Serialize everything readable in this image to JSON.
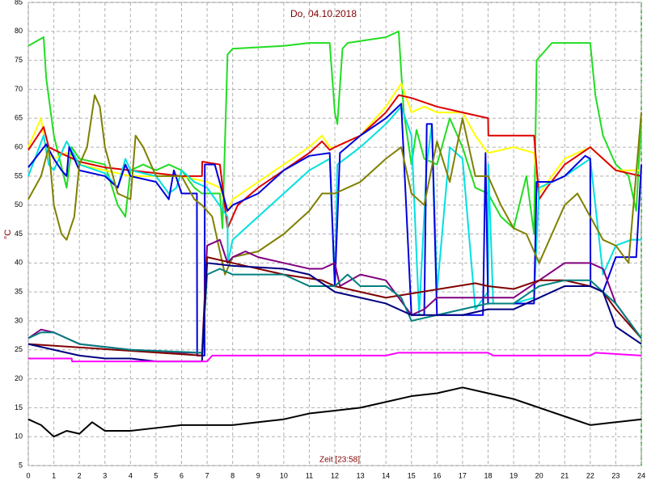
{
  "chart_data": {
    "type": "line",
    "title": "Do, 04.10.2018",
    "x_label": "Zeit [23:58]",
    "y_label": "°C",
    "xlim": [
      0,
      24
    ],
    "xticks": [
      0,
      1,
      2,
      3,
      4,
      5,
      6,
      7,
      8,
      9,
      10,
      11,
      12,
      13,
      14,
      15,
      16,
      17,
      18,
      19,
      20,
      21,
      22,
      23,
      24
    ],
    "ylim": [
      5,
      85
    ],
    "yticks": [
      5,
      10,
      15,
      20,
      25,
      30,
      35,
      40,
      45,
      50,
      55,
      60,
      65,
      70,
      75,
      80,
      85
    ],
    "grid": true,
    "series": [
      {
        "color": "#22dd22",
        "x": [
          0,
          0.2,
          0.6,
          0.7,
          1,
          1.5,
          1.7,
          2,
          3,
          3.5,
          3.8,
          4,
          4.5,
          5,
          5.5,
          6,
          6.5,
          6.8,
          7.5,
          7.6,
          7.8,
          8,
          10,
          11,
          11.8,
          12,
          12.1,
          12.3,
          12.5,
          14,
          14.5,
          14.7,
          15,
          15.2,
          15.5,
          16,
          16.5,
          17,
          17.5,
          18,
          18.5,
          19,
          19.5,
          19.8,
          19.9,
          20.5,
          22,
          22.2,
          22.5,
          23,
          23.5,
          23.8,
          24
        ],
        "values": [
          77.5,
          78,
          79,
          72,
          62,
          53,
          60,
          58,
          57,
          50,
          48,
          56,
          57,
          56,
          57,
          56,
          53,
          52,
          52,
          46,
          76,
          77,
          77.5,
          78,
          78,
          66,
          64,
          77,
          78,
          79,
          80,
          66,
          57,
          63,
          58,
          57,
          65,
          60,
          53,
          52,
          48,
          46,
          55,
          45,
          75,
          78,
          78,
          69,
          62,
          57,
          55,
          49,
          65
        ]
      },
      {
        "color": "#ffff00",
        "x": [
          0,
          0.5,
          0.7,
          1,
          1.5,
          2,
          3,
          4,
          5,
          6,
          7,
          7.5,
          7.8,
          8,
          9,
          10,
          11,
          11.5,
          11.8,
          12,
          13,
          14,
          14.6,
          15,
          15.5,
          16,
          17,
          17.5,
          18,
          19,
          19.8,
          20,
          21,
          22,
          22.5,
          23,
          24
        ],
        "values": [
          60,
          65,
          59,
          58,
          59,
          57,
          56,
          55,
          55,
          55,
          54,
          53,
          49,
          51,
          54,
          57,
          60,
          62,
          60,
          60,
          62,
          67,
          71,
          66,
          67,
          66,
          66,
          62,
          59,
          60,
          59,
          52,
          58,
          60,
          58,
          56,
          56
        ]
      },
      {
        "color": "#dd0000",
        "x": [
          0,
          0.6,
          0.8,
          1.5,
          2,
          3,
          4,
          5,
          6,
          6.8,
          6.81,
          7.5,
          7.8,
          8.2,
          9,
          10,
          11,
          11.5,
          11.8,
          12,
          13,
          14,
          14.5,
          15,
          16,
          17,
          18,
          18.01,
          18.5,
          19,
          19.8,
          20,
          20.3,
          21,
          22,
          22.5,
          23,
          24
        ],
        "values": [
          59.5,
          63.5,
          60,
          58.5,
          57.5,
          56.5,
          56,
          55.5,
          55,
          55,
          57.5,
          57,
          46,
          50,
          53,
          56,
          59,
          61,
          59.5,
          60,
          62,
          66,
          69,
          68.5,
          67,
          66,
          65,
          62,
          62,
          62,
          62,
          51,
          53,
          57,
          60,
          58,
          56,
          55
        ]
      },
      {
        "color": "#00e0e0",
        "x": [
          0,
          0.6,
          0.8,
          1,
          1.5,
          2,
          3,
          3.5,
          3.8,
          4,
          5,
          5.5,
          5.8,
          6,
          6.5,
          7,
          7.8,
          7.81,
          8,
          9,
          10,
          11,
          11.8,
          12,
          12.1,
          13,
          14,
          14.6,
          15,
          15.3,
          15.6,
          15.8,
          16,
          16.5,
          17,
          17.5,
          18,
          18.01,
          18.2,
          19,
          19.8,
          20,
          21,
          22,
          22.5,
          23,
          23.6,
          24
        ],
        "values": [
          55,
          62,
          57,
          56,
          61,
          57,
          55.5,
          53,
          58,
          56,
          55,
          52,
          53,
          56,
          54,
          53,
          48,
          40,
          44,
          48,
          52,
          56,
          58,
          36,
          57,
          60,
          64,
          67,
          62,
          31,
          57,
          64,
          35,
          60,
          58,
          32,
          35,
          57,
          33,
          33,
          34,
          53,
          55,
          58,
          38,
          43,
          44,
          44
        ]
      },
      {
        "color": "#0000dd",
        "x": [
          0,
          0.7,
          1,
          1.3,
          1.5,
          1.6,
          2,
          3,
          3.5,
          3.8,
          4,
          5,
          5.5,
          5.7,
          6,
          6.6,
          6.61,
          6.9,
          6.91,
          7.3,
          7.8,
          8,
          9,
          10,
          11,
          11.8,
          12,
          12.2,
          13,
          14,
          14.6,
          15,
          15.5,
          15.6,
          15.8,
          16,
          17,
          17.8,
          17.9,
          18,
          19.8,
          19.9,
          20.5,
          21,
          21.8,
          22,
          22.01,
          22.5,
          23,
          23.8,
          24
        ],
        "values": [
          56.5,
          60.5,
          58,
          56,
          55,
          60,
          56,
          55,
          53,
          57,
          55,
          54,
          51,
          56,
          52,
          52,
          24,
          24,
          57,
          57,
          49,
          50,
          52,
          56,
          58.5,
          59,
          36,
          59,
          62,
          65,
          67.5,
          31,
          31,
          64,
          64,
          31,
          31,
          31,
          59,
          33,
          33,
          54,
          54,
          55,
          58.5,
          58,
          36,
          35,
          41,
          41,
          57
        ]
      },
      {
        "color": "#808000",
        "x": [
          0,
          0.5,
          0.8,
          1,
          1.3,
          1.5,
          1.8,
          2,
          2.3,
          2.6,
          2.8,
          3,
          3.5,
          4,
          4.2,
          4.5,
          5,
          5.5,
          6,
          6.5,
          6.8,
          7.2,
          7.7,
          8,
          9,
          10,
          11,
          11.5,
          12,
          13,
          14,
          14.6,
          15,
          15.5,
          16,
          16.5,
          17,
          17.5,
          18,
          18.5,
          19,
          19.5,
          20,
          20.5,
          21,
          21.5,
          22,
          22.5,
          23,
          23.5,
          24
        ],
        "values": [
          51,
          55,
          60,
          50,
          45,
          44,
          48,
          57,
          60,
          69,
          67,
          60,
          52,
          51,
          62,
          60,
          55,
          55,
          55,
          51,
          50,
          48,
          38,
          41,
          42,
          45,
          49,
          52,
          52,
          54,
          58,
          60,
          52,
          50,
          61,
          54,
          65,
          55,
          55,
          50,
          46,
          45,
          40,
          45,
          50,
          52,
          48,
          44,
          43,
          40,
          66
        ]
      },
      {
        "color": "#800080",
        "x": [
          0,
          0.5,
          1,
          2,
          3,
          4,
          5,
          6,
          6.8,
          7,
          7.5,
          7.8,
          8,
          8.5,
          9,
          10,
          11,
          11.5,
          12,
          12.2,
          13,
          14,
          15,
          15.5,
          16,
          17,
          17.5,
          18,
          19,
          20,
          21,
          22,
          22.5,
          23,
          24
        ],
        "values": [
          27,
          28.5,
          28,
          26,
          25.5,
          25,
          24.8,
          24.5,
          24.5,
          43,
          44,
          40,
          41,
          42,
          41,
          40,
          39,
          39,
          40,
          36,
          38,
          37,
          31,
          32,
          34,
          34,
          34,
          34,
          34,
          37,
          40,
          40,
          39,
          33,
          27
        ]
      },
      {
        "color": "#800000",
        "x": [
          0,
          6.8,
          7,
          8,
          10,
          11.5,
          12,
          13,
          14,
          17.5,
          18,
          19,
          20,
          21,
          22,
          22.5,
          23,
          24
        ],
        "values": [
          26,
          24,
          41,
          40,
          38,
          37,
          36,
          35,
          34,
          36.5,
          36,
          35.5,
          37,
          37,
          36,
          35,
          32,
          27
        ]
      },
      {
        "color": "#008080",
        "x": [
          0,
          0.5,
          1,
          2,
          4,
          6.8,
          7,
          7.5,
          8,
          9,
          10,
          11,
          12,
          12.5,
          13,
          14,
          14.6,
          15,
          16,
          17,
          18,
          19,
          20,
          21,
          22,
          23,
          24
        ],
        "values": [
          27,
          28,
          28,
          26,
          25,
          24.5,
          38,
          39,
          38,
          38,
          38,
          36,
          36,
          38,
          36,
          36,
          34,
          30,
          31,
          32,
          33,
          33,
          36,
          37,
          37,
          33,
          27
        ]
      },
      {
        "color": "#000080",
        "x": [
          0,
          1,
          2,
          3,
          4,
          5,
          6,
          6.8,
          7,
          8,
          10,
          11,
          12,
          13,
          14,
          15,
          16,
          17,
          18,
          19,
          20,
          21,
          22,
          22.5,
          23,
          24
        ],
        "values": [
          26,
          25,
          24,
          23.5,
          23.5,
          23,
          23,
          23,
          40,
          39.5,
          39,
          38,
          35,
          34,
          33,
          31,
          31,
          31,
          32,
          32,
          34,
          36,
          36,
          35,
          29,
          26
        ]
      },
      {
        "color": "#ff00ff",
        "x": [
          0,
          1.7,
          1.71,
          7,
          7.2,
          14,
          14.5,
          18,
          18.2,
          22,
          22.2,
          24
        ],
        "values": [
          23.5,
          23.5,
          23,
          23,
          24,
          24,
          24.5,
          24.5,
          24,
          24,
          24.5,
          24
        ]
      },
      {
        "color": "#000000",
        "x": [
          0,
          0.5,
          1,
          1.5,
          2,
          2.5,
          3,
          4,
          5,
          6,
          7,
          8,
          9,
          10,
          11,
          12,
          13,
          14,
          15,
          16,
          17,
          18,
          19,
          20,
          21,
          22,
          23,
          24
        ],
        "values": [
          13,
          12,
          10,
          11,
          10.5,
          12.5,
          11,
          11,
          11.5,
          12,
          12,
          12,
          12.5,
          13,
          14,
          14.5,
          15,
          16,
          17,
          17.5,
          18.5,
          17.5,
          16.5,
          15,
          13.5,
          12,
          12.5,
          13
        ]
      }
    ]
  }
}
